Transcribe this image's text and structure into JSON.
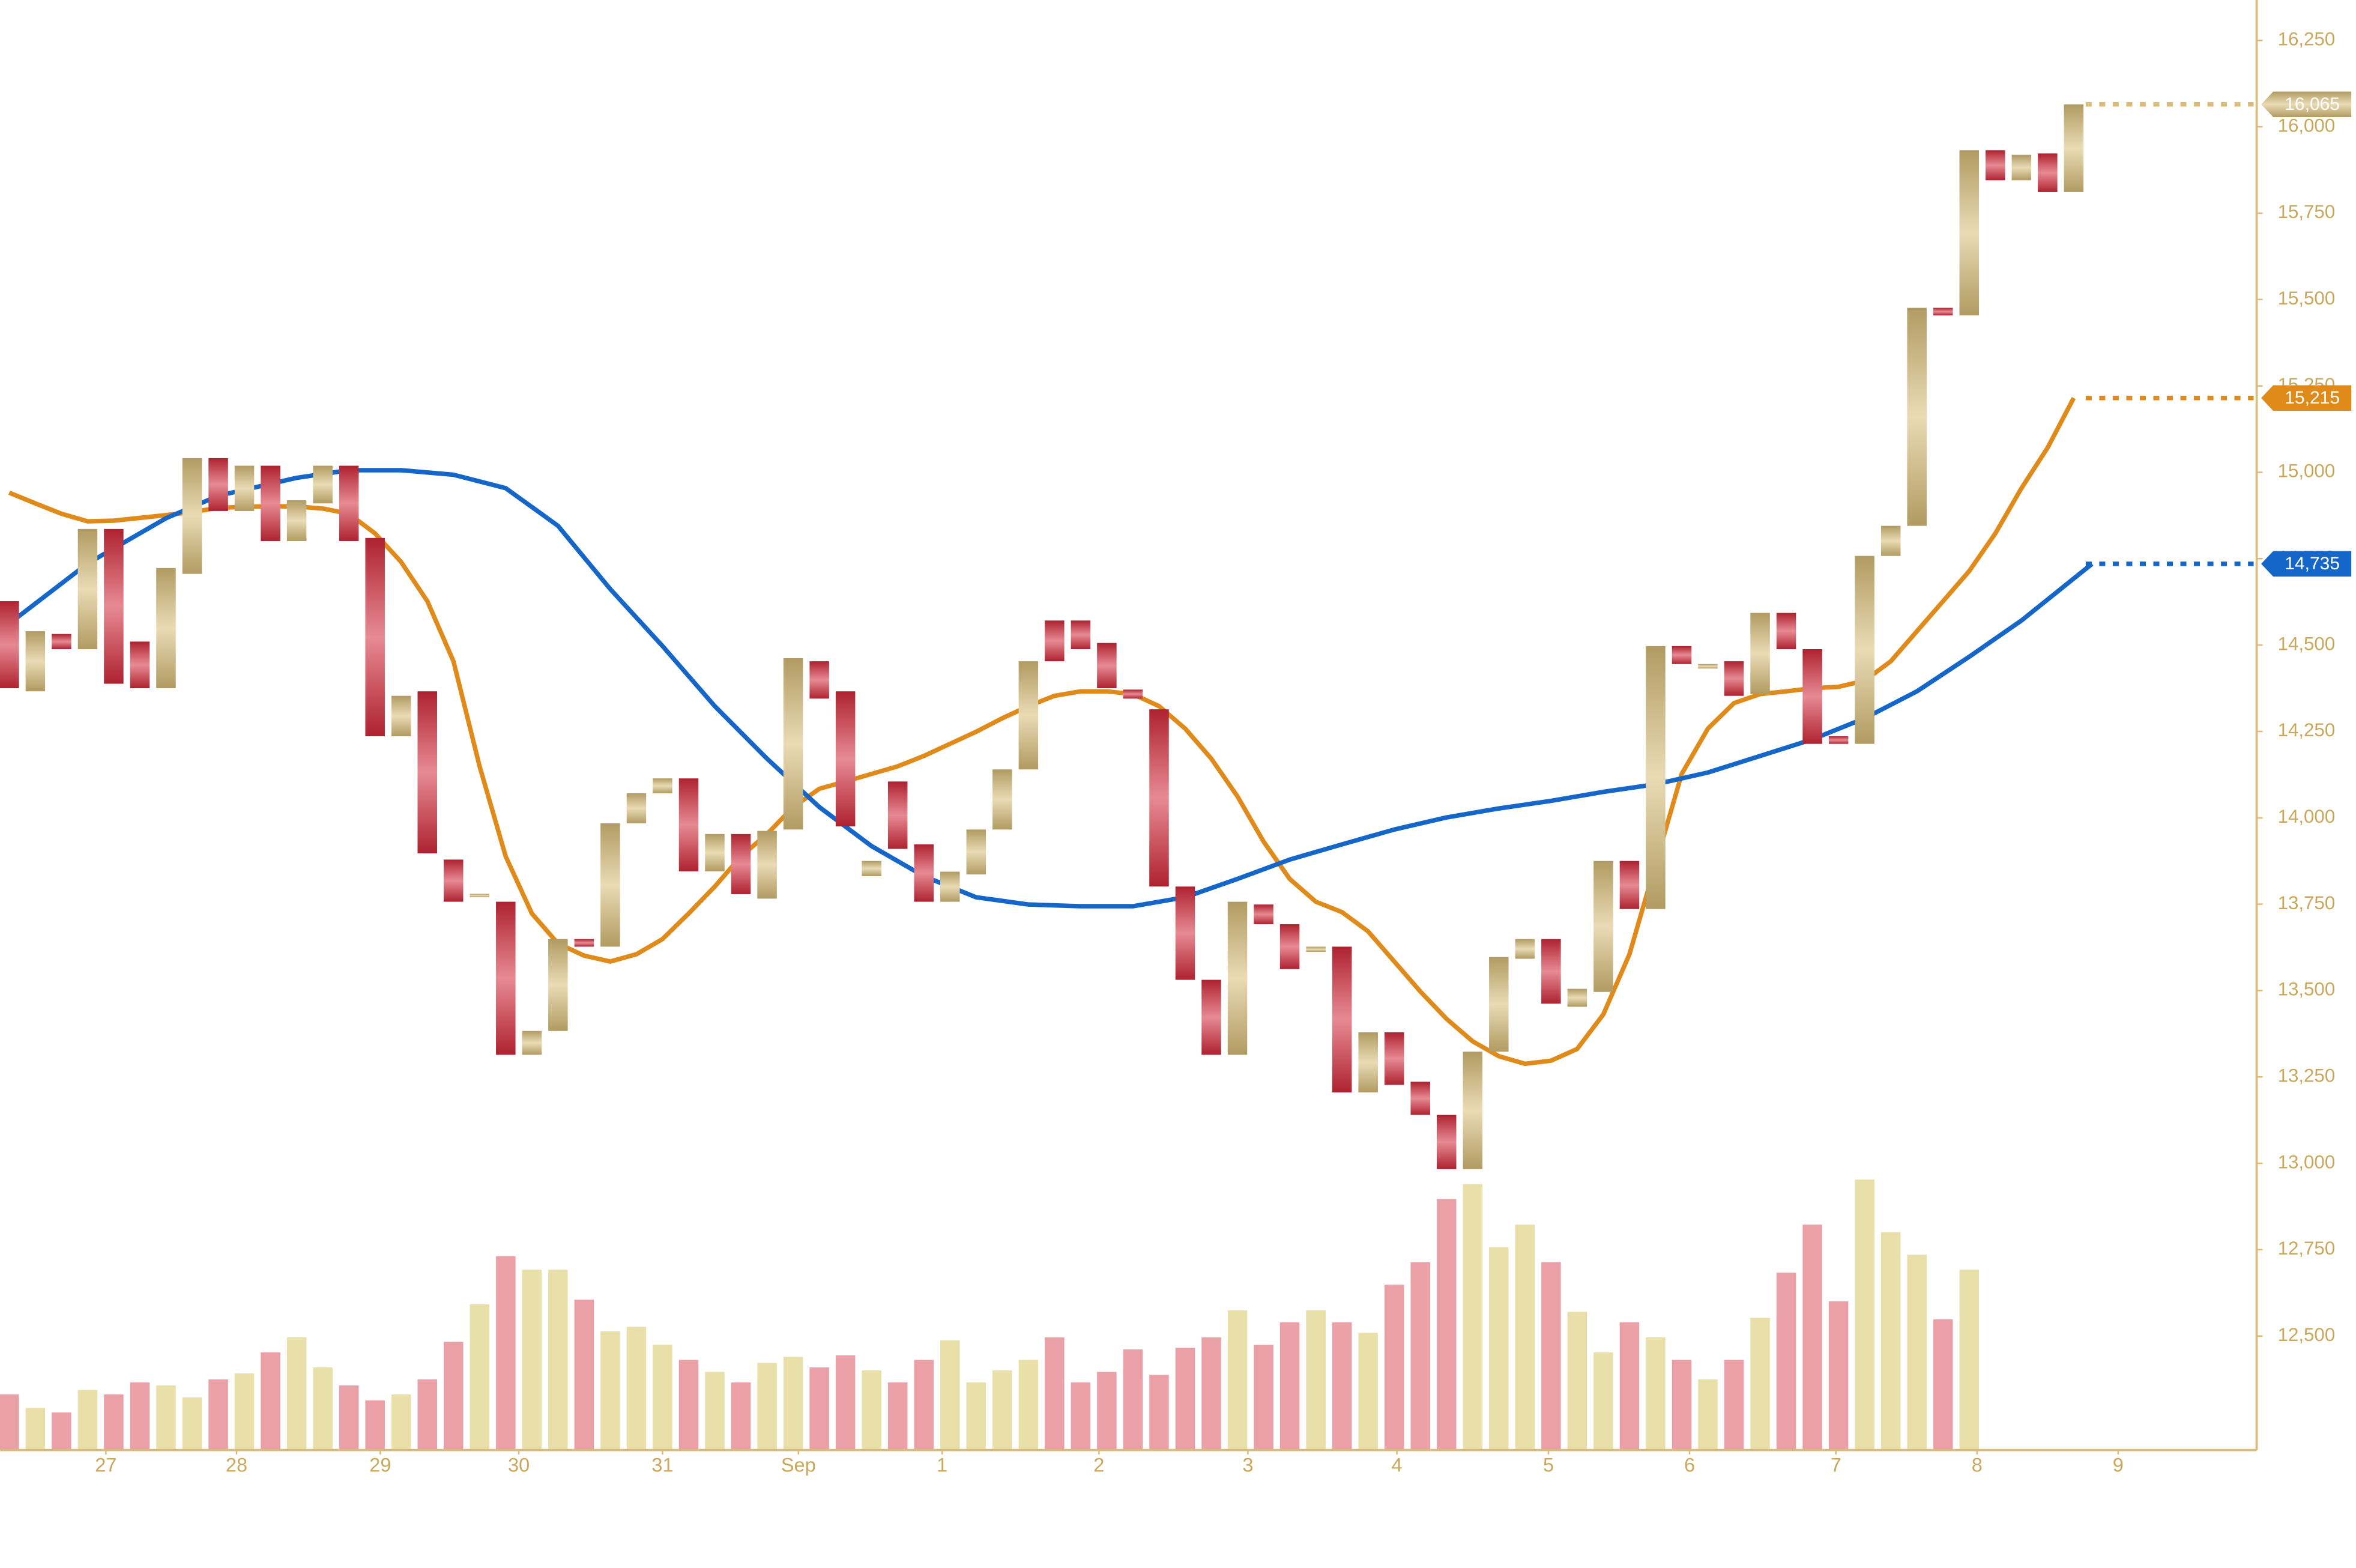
{
  "chart_data": {
    "type": "candlestick",
    "up_color": "#d8bd78",
    "down_color": "#d42a3a",
    "up_volume_color": "#e8e0a8",
    "down_volume_color": "#eaa0a6",
    "axis_color": "#d8bd78",
    "xlim": [
      -0.345,
      86
    ],
    "xticks": [
      {
        "value": 3.7,
        "label": "27"
      },
      {
        "value": 8.7,
        "label": "28"
      },
      {
        "value": 14.2,
        "label": "29"
      },
      {
        "value": 19.5,
        "label": "30"
      },
      {
        "value": 25.0,
        "label": "31"
      },
      {
        "value": 30.2,
        "label": "Sep"
      },
      {
        "value": 35.7,
        "label": "1"
      },
      {
        "value": 41.7,
        "label": "2"
      },
      {
        "value": 47.4,
        "label": "3"
      },
      {
        "value": 53.1,
        "label": "4"
      },
      {
        "value": 58.9,
        "label": "5"
      },
      {
        "value": 64.3,
        "label": "6"
      },
      {
        "value": 69.9,
        "label": "7"
      },
      {
        "value": 75.3,
        "label": "8"
      },
      {
        "value": 80.7,
        "label": "9"
      }
    ],
    "ylim": [
      12170,
      16367
    ],
    "yticks": [
      {
        "value": 12500,
        "label": "12,500"
      },
      {
        "value": 12750,
        "label": "12,750"
      },
      {
        "value": 13000,
        "label": "13,000"
      },
      {
        "value": 13250,
        "label": "13,250"
      },
      {
        "value": 13500,
        "label": "13,500"
      },
      {
        "value": 13750,
        "label": "13,750"
      },
      {
        "value": 14000,
        "label": "14,000"
      },
      {
        "value": 14250,
        "label": "14,250"
      },
      {
        "value": 14500,
        "label": "14,500"
      },
      {
        "value": 14750,
        "label": "14,750"
      },
      {
        "value": 15000,
        "label": "15,000"
      },
      {
        "value": 15250,
        "label": "15,250"
      },
      {
        "value": 15500,
        "label": "15,500"
      },
      {
        "value": 15750,
        "label": "15,750"
      },
      {
        "value": 16000,
        "label": "16,000"
      },
      {
        "value": 16250,
        "label": "16,250"
      }
    ],
    "open": [
      14627,
      14366,
      14532,
      14488,
      14836,
      14510,
      14375,
      14706,
      15041,
      14888,
      15019,
      14801,
      14910,
      15019,
      14810,
      14236,
      14366,
      13879,
      13770,
      13757,
      13314,
      13383,
      13649,
      13627,
      13984,
      14071,
      14114,
      13845,
      13953,
      13766,
      13966,
      14453,
      14366,
      13831,
      14105,
      13923,
      13757,
      13836,
      13966,
      14140,
      14571,
      14571,
      14506,
      14371,
      14314,
      13801,
      13531,
      13314,
      13749,
      13692,
      13612,
      13627,
      13205,
      13379,
      13236,
      13140,
      12983,
      13323,
      13592,
      13649,
      13453,
      13496,
      13875,
      13736,
      14497,
      14432,
      14453,
      14358,
      14593,
      14488,
      14236,
      14214,
      14758,
      14845,
      15476,
      15454,
      15932,
      15845,
      15923,
      15811
    ],
    "high": [
      14854,
      14562,
      14584,
      14945,
      14867,
      14571,
      14758,
      15215,
      15115,
      15115,
      15054,
      14940,
      15289,
      15097,
      14810,
      14388,
      14366,
      13879,
      13831,
      13984,
      13444,
      13679,
      13779,
      14062,
      14184,
      14271,
      14245,
      14018,
      14097,
      14001,
      14475,
      14558,
      14366,
      14127,
      14332,
      13975,
      13910,
      14062,
      14171,
      14497,
      14671,
      14723,
      14606,
      14432,
      14475,
      13923,
      13584,
      13801,
      13975,
      13714,
      13679,
      13671,
      13671,
      13418,
      13366,
      13170,
      13375,
      13636,
      13801,
      13671,
      13562,
      13931,
      13940,
      14693,
      14575,
      14475,
      14488,
      14619,
      14619,
      14519,
      14280,
      14801,
      14888,
      15584,
      15519,
      16019,
      15976,
      15941,
      15945,
      16141
    ],
    "low": [
      14323,
      14105,
      14366,
      14453,
      14358,
      14236,
      14366,
      14649,
      14867,
      14823,
      14706,
      14767,
      14867,
      14575,
      14171,
      14084,
      13879,
      13627,
      13505,
      13201,
      13127,
      13331,
      13396,
      13540,
      13966,
      14001,
      13823,
      13823,
      13714,
      13614,
      13731,
      14297,
      13853,
      13766,
      13866,
      13662,
      13714,
      13757,
      13953,
      14105,
      14358,
      14432,
      14345,
      14301,
      13736,
      13366,
      13253,
      13149,
      13649,
      13518,
      13475,
      12940,
      13192,
      13105,
      12879,
      12692,
      12809,
      13083,
      13462,
      13418,
      13149,
      13462,
      13344,
      13714,
      14419,
      14323,
      14323,
      14288,
      14388,
      14171,
      14040,
      14171,
      14519,
      14823,
      15332,
      15315,
      15811,
      15767,
      15715,
      15758
    ],
    "close": [
      14375,
      14540,
      14488,
      14836,
      14388,
      14375,
      14723,
      15041,
      14888,
      15019,
      14801,
      14919,
      15019,
      14801,
      14236,
      14353,
      13897,
      13757,
      13780,
      13314,
      13383,
      13649,
      13627,
      13984,
      14071,
      14114,
      13845,
      13953,
      13779,
      13962,
      14462,
      14345,
      13975,
      13875,
      13910,
      13757,
      13844,
      13966,
      14140,
      14453,
      14453,
      14488,
      14375,
      14345,
      13801,
      13531,
      13314,
      13757,
      13692,
      13562,
      13627,
      13205,
      13379,
      13227,
      13140,
      12983,
      13323,
      13597,
      13649,
      13462,
      13505,
      13875,
      13736,
      14497,
      14445,
      14445,
      14353,
      14593,
      14488,
      14214,
      14214,
      14758,
      14845,
      15476,
      15454,
      15932,
      15845,
      15919,
      15811,
      16065
    ],
    "volume": [
      37,
      28,
      25,
      40,
      37,
      45,
      43,
      35,
      47,
      51,
      65,
      75,
      55,
      43,
      33,
      37,
      47,
      72,
      97,
      129,
      120,
      120,
      100,
      79,
      82,
      70,
      60,
      52,
      45,
      58,
      62,
      55,
      63,
      53,
      45,
      60,
      73,
      45,
      53,
      60,
      75,
      45,
      52,
      67,
      50,
      68,
      75,
      93,
      70,
      85,
      93,
      85,
      78,
      110,
      125,
      167,
      177,
      135,
      150,
      125,
      92,
      65,
      85,
      75,
      60,
      47,
      60,
      88,
      118,
      150,
      99,
      180,
      145,
      130,
      87,
      120,
      null,
      null,
      null,
      null
    ],
    "series": [
      {
        "color": "#e08a1a",
        "x": [
          0,
          1,
          2,
          3,
          4,
          5,
          6,
          7,
          8,
          9,
          10,
          11,
          12,
          13,
          14,
          15,
          16,
          17,
          18,
          19,
          20,
          21,
          22,
          23,
          24,
          25,
          26,
          27,
          28,
          29,
          30,
          31,
          32,
          33,
          34,
          35,
          36,
          37,
          38,
          39,
          40,
          41,
          42,
          43,
          44,
          45,
          46,
          47,
          48,
          49,
          50,
          51,
          52,
          53,
          54,
          55,
          56,
          57,
          58,
          59,
          60,
          61,
          62,
          63,
          64,
          65,
          66,
          67,
          68,
          69,
          70,
          71,
          72,
          73,
          74,
          75,
          76,
          77,
          78,
          79
        ],
        "values": [
          14941,
          14910,
          14880,
          14858,
          14860,
          14868,
          14876,
          14885,
          14897,
          14900,
          14902,
          14901,
          14895,
          14880,
          14823,
          14740,
          14627,
          14453,
          14149,
          13888,
          13723,
          13636,
          13601,
          13584,
          13605,
          13649,
          13723,
          13801,
          13888,
          13953,
          14031,
          14084,
          14105,
          14127,
          14149,
          14179,
          14214,
          14249,
          14288,
          14323,
          14353,
          14366,
          14366,
          14358,
          14323,
          14258,
          14171,
          14062,
          13931,
          13823,
          13757,
          13727,
          13671,
          13584,
          13497,
          13418,
          13353,
          13310,
          13288,
          13297,
          13331,
          13431,
          13605,
          13866,
          14127,
          14258,
          14332,
          14358,
          14366,
          14375,
          14379,
          14397,
          14453,
          14540,
          14627,
          14714,
          14823,
          14954,
          15071,
          15215
        ]
      },
      {
        "color": "#1466c8",
        "x": [
          0,
          3,
          6,
          8,
          11,
          13,
          15,
          17,
          19,
          21,
          23,
          25,
          27,
          29,
          31,
          33,
          35,
          37,
          39,
          41,
          43,
          45,
          47,
          49,
          51,
          53,
          55,
          57,
          59,
          61,
          63,
          65,
          67,
          69,
          71,
          73,
          75,
          77,
          79.7
        ],
        "values": [
          14562,
          14736,
          14867,
          14932,
          14984,
          15006,
          15006,
          14993,
          14954,
          14845,
          14662,
          14497,
          14323,
          14171,
          14031,
          13918,
          13831,
          13770,
          13749,
          13744,
          13744,
          13770,
          13823,
          13879,
          13923,
          13966,
          14001,
          14027,
          14049,
          14075,
          14097,
          14131,
          14179,
          14227,
          14288,
          14366,
          14466,
          14571,
          14735
        ]
      }
    ],
    "price_markers": [
      {
        "value": 16065,
        "label": "16,065",
        "color": "#d8bd78"
      },
      {
        "value": 15215,
        "label": "15,215",
        "color": "#e08a1a"
      },
      {
        "value": 14735,
        "label": "14,735",
        "color": "#1466c8"
      }
    ]
  }
}
